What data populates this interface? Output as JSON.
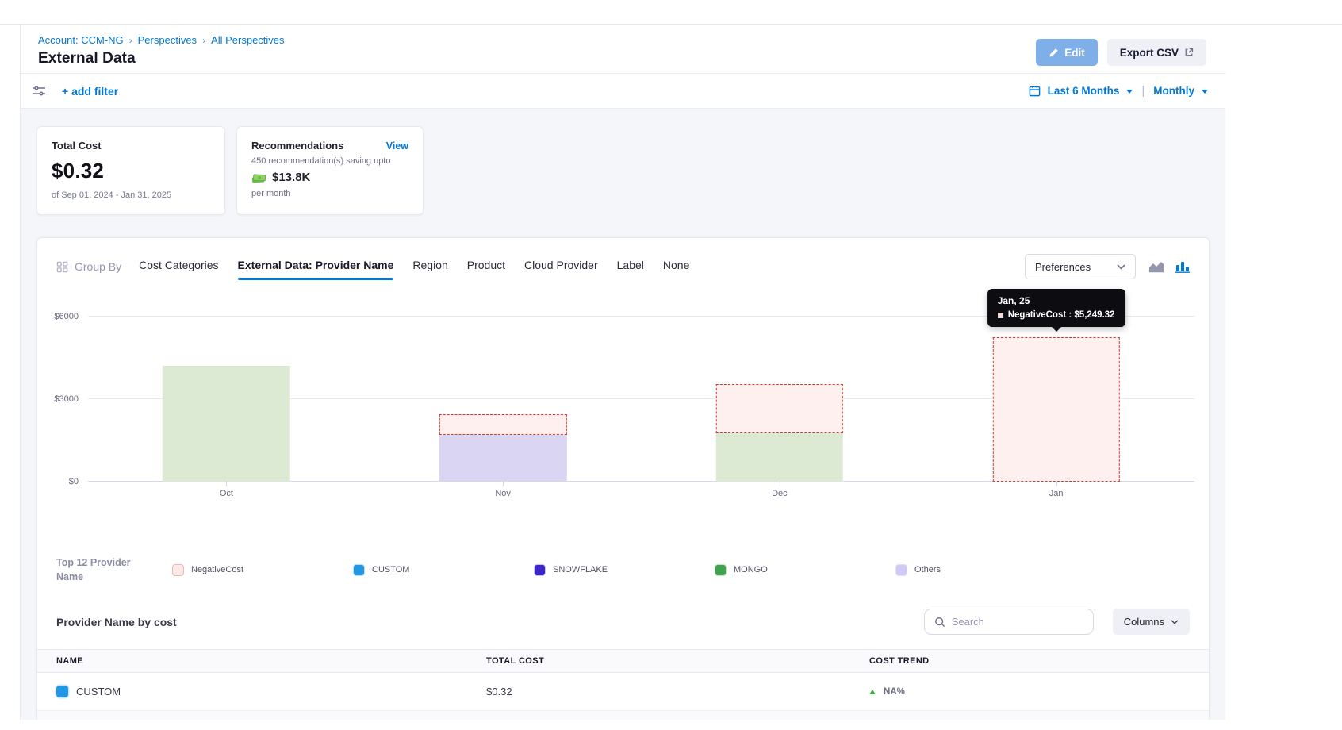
{
  "accent": "#0278d5",
  "breadcrumb": {
    "separator": "›",
    "items": [
      "Account: CCM-NG",
      "Perspectives",
      "All Perspectives"
    ]
  },
  "header": {
    "title": "External Data",
    "edit": "Edit",
    "export": "Export CSV"
  },
  "filter_bar": {
    "add_filter": "+ add filter",
    "date_range": "Last 6 Months",
    "granularity": "Monthly"
  },
  "cards": {
    "total_cost": {
      "label": "Total Cost",
      "value": "$0.32",
      "period": "of Sep 01, 2024 - Jan 31, 2025"
    },
    "recommendations": {
      "label": "Recommendations",
      "view": "View",
      "subtitle": "450 recommendation(s) saving upto",
      "savings": "$13.8K",
      "per": "per month"
    }
  },
  "group_by": {
    "label": "Group By",
    "tabs": [
      "Cost Categories",
      "External Data: Provider Name",
      "Region",
      "Product",
      "Cloud Provider",
      "Label",
      "None"
    ],
    "active_index": 1,
    "preferences": "Preferences"
  },
  "chart_data": {
    "type": "bar",
    "stacked": true,
    "title": "",
    "xlabel": "",
    "ylabel": "",
    "grid": true,
    "legend_position": "bottom",
    "categories": [
      "Oct",
      "Nov",
      "Dec",
      "Jan"
    ],
    "series": [
      {
        "name": "MONGO",
        "color": "#dcead4",
        "values": [
          4200,
          0,
          1750,
          0
        ]
      },
      {
        "name": "Others",
        "color": "#d9d5f2",
        "values": [
          0,
          1700,
          0,
          0
        ]
      },
      {
        "name": "NegativeCost",
        "color": "#fdf0ee",
        "border": "#d5382b",
        "dashed": true,
        "values": [
          0,
          750,
          1790,
          5249.32
        ]
      }
    ],
    "yticks": [
      {
        "label": "$0",
        "value": 0
      },
      {
        "label": "$3000",
        "value": 3000
      },
      {
        "label": "$6000",
        "value": 6000
      }
    ],
    "ylim": [
      0,
      6550
    ]
  },
  "tooltip": {
    "anchor": "Jan",
    "title": "Jan, 25",
    "text": "NegativeCost : $5,249.32",
    "swatch": "#f3ddda"
  },
  "legend": {
    "title_line1": "Top 12 Provider",
    "title_line2": "Name",
    "items": [
      {
        "label": "NegativeCost",
        "color": "#fceae8",
        "border": "#efb6af"
      },
      {
        "label": "CUSTOM",
        "color": "#2196e3",
        "border": "#bfdcf5"
      },
      {
        "label": "SNOWFLAKE",
        "color": "#3b27c8",
        "border": "#c8c2f0"
      },
      {
        "label": "MONGO",
        "color": "#3fa34d",
        "border": "#c4e3c9"
      },
      {
        "label": "Others",
        "color": "#cfc9f6",
        "border": "#e2def9"
      }
    ]
  },
  "table": {
    "title": "Provider Name by cost",
    "search_placeholder": "Search",
    "columns": "Columns",
    "headers": [
      "NAME",
      "TOTAL COST",
      "COST TREND"
    ],
    "rows": [
      {
        "name": "CUSTOM",
        "swatch": "#2196e3",
        "total_cost": "$0.32",
        "trend": "NA%",
        "trend_direction": "up"
      }
    ]
  }
}
